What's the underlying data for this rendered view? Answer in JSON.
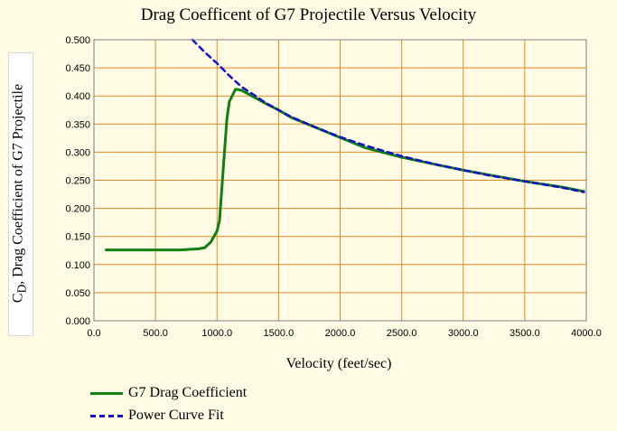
{
  "chart_data": {
    "type": "line",
    "title": "Drag Coefficent of G7 Projectile Versus Velocity",
    "xlabel": "Velocity (feet/sec)",
    "ylabel_main": "C",
    "ylabel_sub": "D",
    "ylabel_rest": ", Drag Coefficient of G7 Projectile",
    "xlim": [
      0,
      4000
    ],
    "ylim": [
      0,
      0.5
    ],
    "x_ticks": [
      "0.0",
      "500.0",
      "1000.0",
      "1500.0",
      "2000.0",
      "2500.0",
      "3000.0",
      "3500.0",
      "4000.0"
    ],
    "y_ticks": [
      "0.000",
      "0.050",
      "0.100",
      "0.150",
      "0.200",
      "0.250",
      "0.300",
      "0.350",
      "0.400",
      "0.450",
      "0.500"
    ],
    "grid": true,
    "legend_position": "bottom-left",
    "series": [
      {
        "name": "G7 Drag Coefficient",
        "color": "#118011",
        "style": "solid",
        "x": [
          100,
          400,
          700,
          850,
          900,
          950,
          1000,
          1020,
          1050,
          1080,
          1100,
          1150,
          1200,
          1300,
          1400,
          1500,
          1600,
          1800,
          2000,
          2200,
          2500,
          2800,
          3000,
          3200,
          3500,
          3800,
          3980
        ],
        "y": [
          0.126,
          0.126,
          0.126,
          0.128,
          0.13,
          0.14,
          0.16,
          0.178,
          0.27,
          0.36,
          0.39,
          0.412,
          0.41,
          0.398,
          0.386,
          0.375,
          0.362,
          0.344,
          0.326,
          0.308,
          0.291,
          0.277,
          0.268,
          0.26,
          0.248,
          0.238,
          0.23
        ]
      },
      {
        "name": "Power Curve Fit",
        "color": "#1010cc",
        "style": "dashed",
        "x": [
          800,
          900,
          1000,
          1100,
          1200,
          1300,
          1400,
          1600,
          1800,
          2000,
          2200,
          2500,
          2800,
          3000,
          3200,
          3500,
          3800,
          3980
        ],
        "y": [
          0.5,
          0.478,
          0.458,
          0.436,
          0.416,
          0.402,
          0.387,
          0.363,
          0.344,
          0.327,
          0.312,
          0.293,
          0.277,
          0.268,
          0.259,
          0.248,
          0.237,
          0.229
        ]
      }
    ]
  }
}
